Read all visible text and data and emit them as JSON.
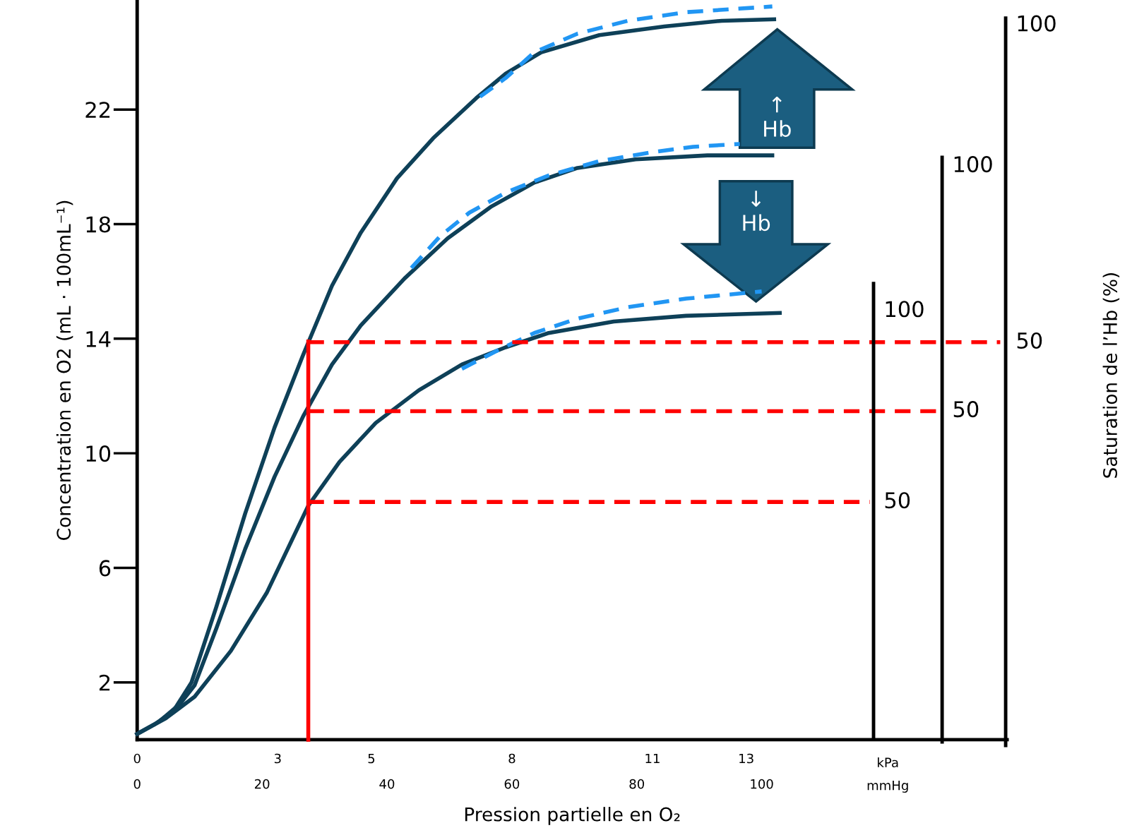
{
  "chart_data": [
    {
      "type": "line",
      "xlabel": "Pression partielle en O₂",
      "ylabel": "Concentration en O2 (mL · 100mL⁻¹)",
      "xlim": [
        0,
        139.3
      ],
      "ylim": [
        0,
        25.8
      ],
      "xticks": [
        0,
        20,
        40,
        60,
        80,
        100
      ],
      "x2lim": [
        0,
        18.57
      ],
      "x2ticks": [
        0,
        3,
        5,
        8,
        11,
        13
      ],
      "yticks": [
        2,
        6,
        10,
        14,
        18,
        22
      ],
      "legend": false,
      "grid": false,
      "marker": "none",
      "annotations": [
        "kPa",
        "mmHg",
        "↑\nHb",
        "↓\nHb"
      ],
      "series": [
        {
          "type": "line",
          "color": "#0e4058",
          "line_style": "solid",
          "x": [
            0,
            2.9,
            5.8,
            8.7,
            12.7,
            17.3,
            22.0,
            26.6,
            31.2,
            35.8,
            41.6,
            47.4,
            54.3,
            59.0,
            64.7,
            74.0,
            84.4,
            93.6,
            102.0
          ],
          "values": [
            0.2,
            0.55,
            1.0,
            2.0,
            4.65,
            7.9,
            10.9,
            13.45,
            15.85,
            17.7,
            19.6,
            21.0,
            22.4,
            23.25,
            24.0,
            24.6,
            24.9,
            25.1,
            25.15
          ]
        },
        {
          "type": "line",
          "color": "#2196f3",
          "line_style": "dashed",
          "x": [
            54.9,
            59.0,
            63.6,
            70.5,
            78.6,
            87.9,
            101.7
          ],
          "values": [
            22.45,
            23.1,
            24.0,
            24.65,
            25.1,
            25.4,
            25.6
          ]
        },
        {
          "type": "line",
          "color": "#0e4058",
          "line_style": "solid",
          "x": [
            0,
            3.5,
            6.9,
            9.2,
            12.7,
            17.3,
            22.0,
            26.6,
            31.2,
            35.8,
            42.8,
            49.7,
            56.6,
            63.6,
            70.5,
            79.8,
            91.3,
            101.7
          ],
          "values": [
            0.2,
            0.63,
            1.26,
            1.9,
            3.9,
            6.66,
            9.18,
            11.3,
            13.1,
            14.46,
            16.1,
            17.5,
            18.6,
            19.45,
            19.96,
            20.26,
            20.4,
            20.4
          ]
        },
        {
          "type": "line",
          "color": "#2196f3",
          "line_style": "dashed",
          "x": [
            43.9,
            48.6,
            53.2,
            59.0,
            65.9,
            74.0,
            82.1,
            89.0,
            96.5
          ],
          "values": [
            16.47,
            17.6,
            18.4,
            19.1,
            19.7,
            20.2,
            20.5,
            20.7,
            20.8
          ]
        },
        {
          "type": "line",
          "color": "#0e4058",
          "line_style": "solid",
          "x": [
            0,
            4.6,
            9.2,
            15.0,
            20.8,
            27.4,
            32.4,
            38.2,
            45.1,
            52.0,
            59.0,
            65.9,
            76.3,
            87.9,
            102.9
          ],
          "values": [
            0.2,
            0.75,
            1.5,
            3.1,
            5.15,
            8.17,
            9.7,
            11.06,
            12.2,
            13.1,
            13.7,
            14.2,
            14.6,
            14.8,
            14.9
          ]
        },
        {
          "type": "line",
          "color": "#2196f3",
          "line_style": "dashed",
          "x": [
            52.0,
            57.8,
            63.6,
            70.5,
            78.6,
            87.9,
            100.0
          ],
          "values": [
            12.95,
            13.6,
            14.2,
            14.7,
            15.1,
            15.4,
            15.65
          ]
        },
        {
          "type": "line",
          "color": "#ff0000",
          "line_style": "solid",
          "x": [
            27.4,
            27.4
          ],
          "values": [
            0,
            13.9
          ]
        },
        {
          "type": "line",
          "color": "#ff0000",
          "line_style": "dashed",
          "x": [
            27.4,
            138.2
          ],
          "values": [
            13.88,
            13.88
          ]
        },
        {
          "type": "line",
          "color": "#ff0000",
          "line_style": "dashed",
          "x": [
            27.4,
            128.3
          ],
          "values": [
            11.47,
            11.47
          ]
        },
        {
          "type": "line",
          "color": "#ff0000",
          "line_style": "dashed",
          "x": [
            27.4,
            117.3
          ],
          "values": [
            8.3,
            8.3
          ]
        }
      ]
    },
    {
      "type": "other",
      "annotations": [
        "100",
        "50"
      ]
    },
    {
      "type": "other",
      "annotations": [
        "100",
        "50"
      ]
    },
    {
      "type": "other",
      "annotations": [
        "100",
        "50"
      ],
      "ylabel": "Saturation de l’Hb (%)"
    }
  ]
}
